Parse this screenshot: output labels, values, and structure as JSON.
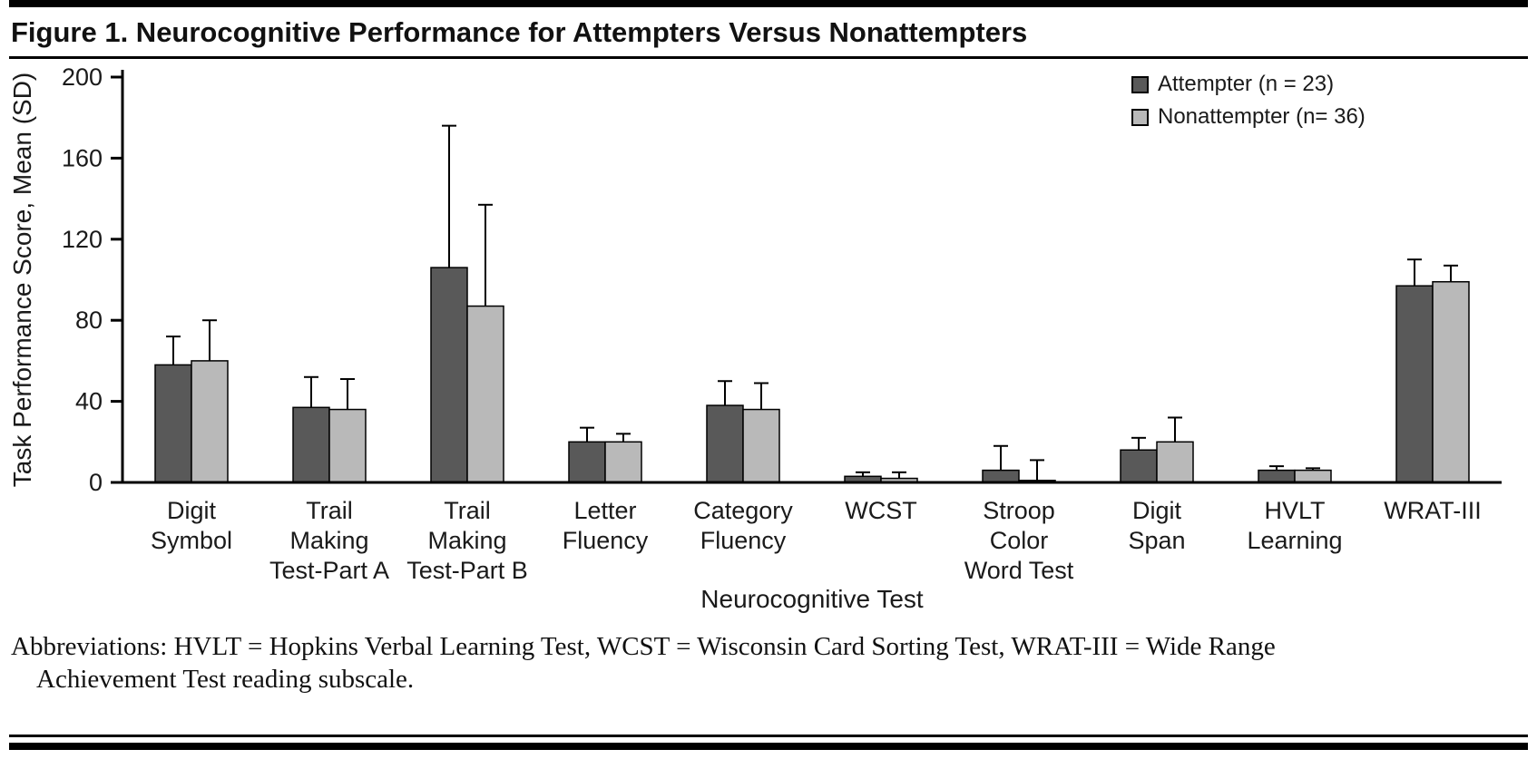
{
  "title": "Figure 1. Neurocognitive Performance for Attempters Versus Nonattempters",
  "footer": {
    "abbreviations_line1": "Abbreviations: HVLT = Hopkins Verbal Learning Test, WCST = Wisconsin Card Sorting Test, WRAT-III = Wide Range",
    "abbreviations_line2": "Achievement Test reading subscale."
  },
  "chart_data": {
    "type": "bar",
    "title": "Figure 1. Neurocognitive Performance for Attempters Versus Nonattempters",
    "xlabel": "Neurocognitive Test",
    "ylabel": "Task Performance Score, Mean (SD)",
    "ylim": [
      0,
      200
    ],
    "yticks": [
      0,
      40,
      80,
      120,
      160,
      200
    ],
    "grid": false,
    "legend_position": "top-right",
    "categories": [
      "Digit Symbol",
      "Trail Making Test-Part A",
      "Trail Making Test-Part B",
      "Letter Fluency",
      "Category Fluency",
      "WCST",
      "Stroop Color Word Test",
      "Digit Span",
      "HVLT Learning",
      "WRAT-III"
    ],
    "category_label_lines": [
      [
        "Digit",
        "Symbol"
      ],
      [
        "Trail",
        "Making",
        "Test-Part A"
      ],
      [
        "Trail",
        "Making",
        "Test-Part B"
      ],
      [
        "Letter",
        "Fluency"
      ],
      [
        "Category",
        "Fluency"
      ],
      [
        "WCST"
      ],
      [
        "Stroop",
        "Color",
        "Word Test"
      ],
      [
        "Digit",
        "Span"
      ],
      [
        "HVLT",
        "Learning"
      ],
      [
        "WRAT-III"
      ]
    ],
    "series": [
      {
        "name": "Attempter (n = 23)",
        "color": "#595959",
        "values": [
          58,
          37,
          106,
          20,
          38,
          3,
          6,
          16,
          6,
          97
        ],
        "errors_up": [
          14,
          15,
          70,
          7,
          12,
          2,
          12,
          6,
          2,
          13
        ]
      },
      {
        "name": "Nonattempter (n= 36)",
        "color": "#b9b9b9",
        "values": [
          60,
          36,
          87,
          20,
          36,
          2,
          1,
          20,
          6,
          99
        ],
        "errors_up": [
          20,
          15,
          50,
          4,
          13,
          3,
          10,
          12,
          1,
          8
        ]
      }
    ]
  }
}
